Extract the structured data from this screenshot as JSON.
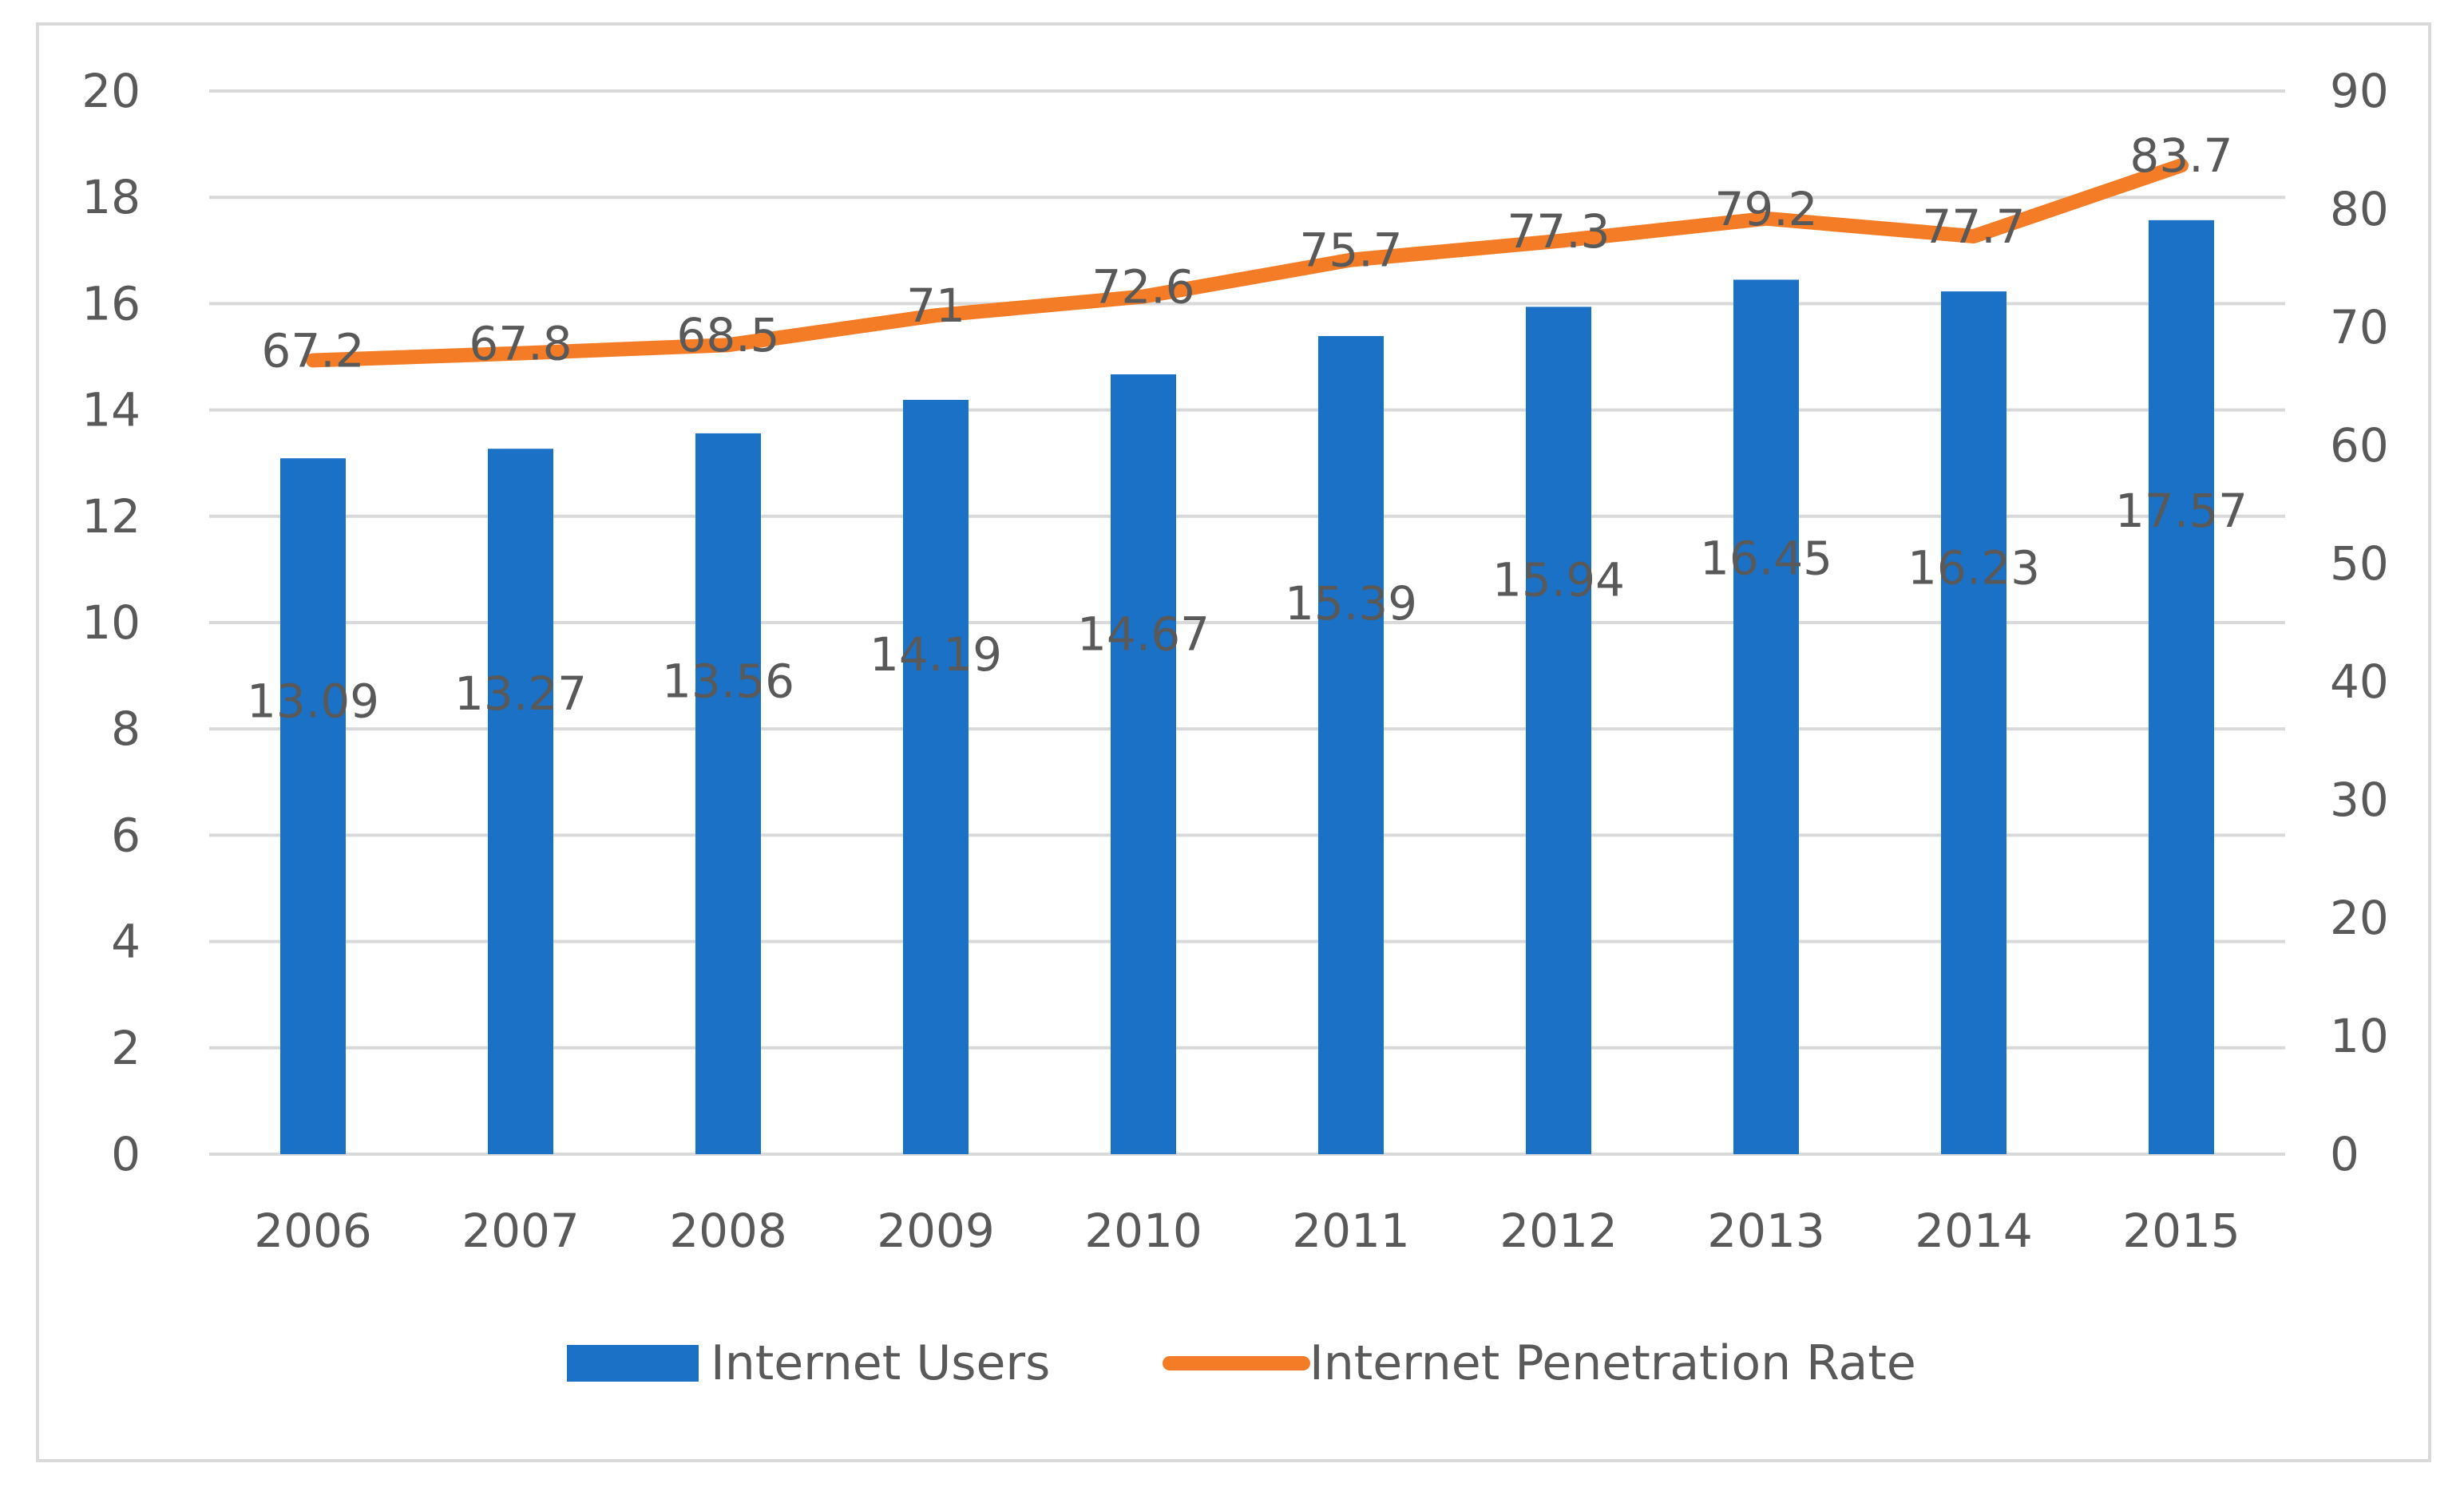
{
  "chart_data": {
    "type": "bar",
    "categories": [
      "2006",
      "2007",
      "2008",
      "2009",
      "2010",
      "2011",
      "2012",
      "2013",
      "2014",
      "2015"
    ],
    "series": [
      {
        "name": "Internet Users",
        "type": "bar",
        "axis": "left",
        "color": "#1a71c6",
        "values": [
          13.09,
          13.27,
          13.56,
          14.19,
          14.67,
          15.39,
          15.94,
          16.45,
          16.23,
          17.57
        ],
        "labels": [
          "13.09",
          "13.27",
          "13.56",
          "14.19",
          "14.67",
          "15.39",
          "15.94",
          "16.45",
          "16.23",
          "17.57"
        ]
      },
      {
        "name": "Internet Penetration Rate",
        "type": "line",
        "axis": "right",
        "color": "#f47c26",
        "values": [
          67.2,
          67.8,
          68.5,
          71,
          72.6,
          75.7,
          77.3,
          79.2,
          77.7,
          83.7
        ],
        "labels": [
          "67.2",
          "67.8",
          "68.5",
          "71",
          "72.6",
          "75.7",
          "77.3",
          "79.2",
          "77.7",
          "83.7"
        ]
      }
    ],
    "title": "",
    "xlabel": "",
    "ylabel": "",
    "ylim": [
      0,
      20
    ],
    "y2lim": [
      0,
      90
    ],
    "yticks": [
      "0",
      "2",
      "4",
      "6",
      "8",
      "10",
      "12",
      "14",
      "16",
      "18",
      "20"
    ],
    "y2ticks": [
      "0",
      "10",
      "20",
      "30",
      "40",
      "50",
      "60",
      "70",
      "80",
      "90"
    ],
    "grid": true,
    "legend": "bottom-center",
    "text_color": "#595959",
    "grid_color": "#d9d9d9",
    "frame_color": "#d9d9d9"
  }
}
